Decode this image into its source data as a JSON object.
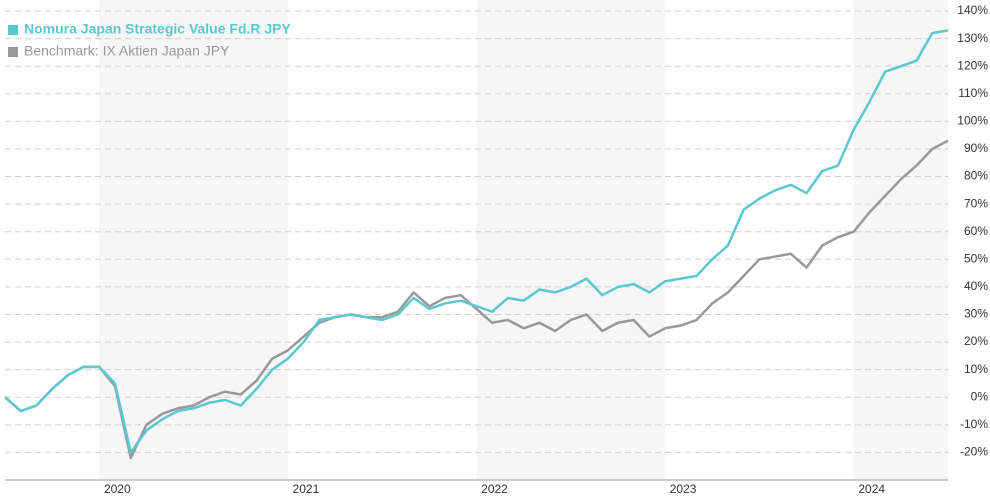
{
  "chart_data": {
    "type": "line",
    "categories": [
      null,
      null,
      null,
      null,
      null,
      null,
      "2020",
      null,
      null,
      null,
      null,
      null,
      null,
      null,
      null,
      null,
      null,
      null,
      "2021",
      null,
      null,
      null,
      null,
      null,
      null,
      null,
      null,
      null,
      null,
      null,
      "2022",
      null,
      null,
      null,
      null,
      null,
      null,
      null,
      null,
      null,
      null,
      null,
      "2023",
      null,
      null,
      null,
      null,
      null,
      null,
      null,
      null,
      null,
      null,
      null,
      "2024",
      null,
      null,
      null,
      null,
      null,
      null
    ],
    "series": [
      {
        "name": "Nomura Japan Strategic Value Fd.R JPY",
        "color": "#5bc8cf",
        "values": [
          0,
          -5,
          -3,
          3,
          8,
          11,
          11,
          5,
          -20,
          -12,
          -8,
          -5,
          -4,
          -2,
          -1,
          -3,
          3,
          10,
          14,
          20,
          28,
          29,
          30,
          29,
          28,
          30,
          36,
          32,
          34,
          35,
          33,
          31,
          36,
          35,
          39,
          38,
          40,
          43,
          37,
          40,
          41,
          38,
          42,
          43,
          44,
          50,
          55,
          68,
          72,
          75,
          77,
          74,
          82,
          84,
          97,
          107,
          118,
          120,
          122,
          132,
          133
        ]
      },
      {
        "name": "Benchmark: IX Aktien Japan JPY",
        "color": "#999999",
        "values": [
          0,
          -5,
          -3,
          3,
          8,
          11,
          11,
          4,
          -22,
          -10,
          -6,
          -4,
          -3,
          0,
          2,
          1,
          6,
          14,
          17,
          22,
          27,
          29,
          30,
          29,
          29,
          31,
          38,
          33,
          36,
          37,
          32,
          27,
          28,
          25,
          27,
          24,
          28,
          30,
          24,
          27,
          28,
          22,
          25,
          26,
          28,
          34,
          38,
          44,
          50,
          51,
          52,
          47,
          55,
          58,
          60,
          67,
          73,
          79,
          84,
          90,
          93
        ]
      }
    ],
    "ylim": [
      -30,
      144
    ],
    "yticks": [
      {
        "value": -20,
        "label": "-20%"
      },
      {
        "value": -10,
        "label": "-10%"
      },
      {
        "value": 0,
        "label": "0%"
      },
      {
        "value": 10,
        "label": "10%"
      },
      {
        "value": 20,
        "label": "20%"
      },
      {
        "value": 30,
        "label": "30%"
      },
      {
        "value": 40,
        "label": "40%"
      },
      {
        "value": 50,
        "label": "50%"
      },
      {
        "value": 60,
        "label": "60%"
      },
      {
        "value": 70,
        "label": "70%"
      },
      {
        "value": 80,
        "label": "80%"
      },
      {
        "value": 90,
        "label": "90%"
      },
      {
        "value": 100,
        "label": "100%"
      },
      {
        "value": 110,
        "label": "110%"
      },
      {
        "value": 120,
        "label": "120%"
      },
      {
        "value": 130,
        "label": "130%"
      },
      {
        "value": 140,
        "label": "140%"
      }
    ],
    "grid": true
  }
}
